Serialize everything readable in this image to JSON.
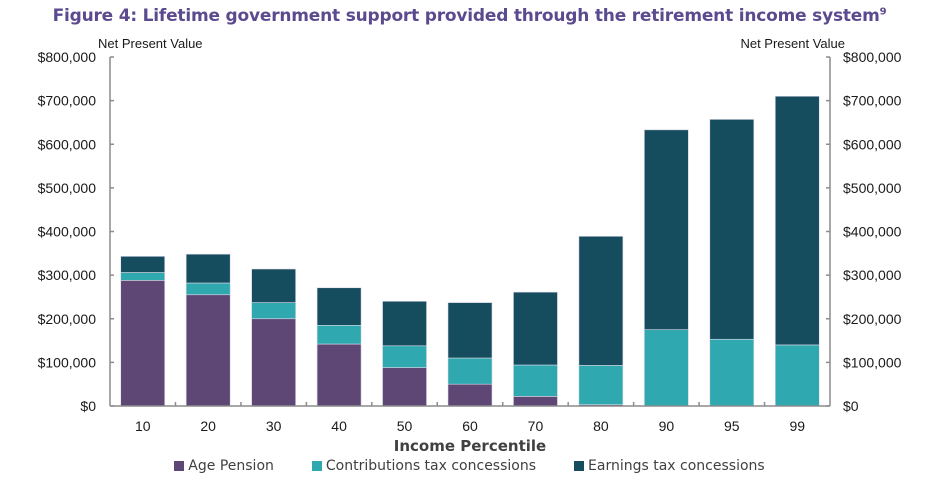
{
  "chart_data": {
    "type": "bar",
    "stacked": true,
    "title": "Figure 4: Lifetime government support provided through the retirement income system",
    "title_superscript": "9",
    "xlabel": "Income Percentile",
    "ylabel_left": "Net Present Value",
    "ylabel_right": "Net Present Value",
    "ylim": [
      0,
      800000
    ],
    "yticks": [
      0,
      100000,
      200000,
      300000,
      400000,
      500000,
      600000,
      700000,
      800000
    ],
    "ytick_labels": [
      "$0",
      "$100,000",
      "$200,000",
      "$300,000",
      "$400,000",
      "$500,000",
      "$600,000",
      "$700,000",
      "$800,000"
    ],
    "categories": [
      "10",
      "20",
      "30",
      "40",
      "50",
      "60",
      "70",
      "80",
      "90",
      "95",
      "99"
    ],
    "series": [
      {
        "name": "Age Pension",
        "color": "#5e4775",
        "values": [
          288000,
          255000,
          200000,
          142000,
          88000,
          50000,
          22000,
          3000,
          0,
          0,
          0
        ]
      },
      {
        "name": "Contributions tax concessions",
        "color": "#2fa8b0",
        "values": [
          18000,
          27000,
          37000,
          43000,
          50000,
          60000,
          72000,
          90000,
          175000,
          153000,
          140000
        ]
      },
      {
        "name": "Earnings tax concessions",
        "color": "#154c5e",
        "values": [
          37000,
          66000,
          77000,
          86000,
          102000,
          127000,
          167000,
          296000,
          458000,
          504000,
          570000
        ]
      }
    ],
    "legend_position": "bottom",
    "grid": false
  }
}
